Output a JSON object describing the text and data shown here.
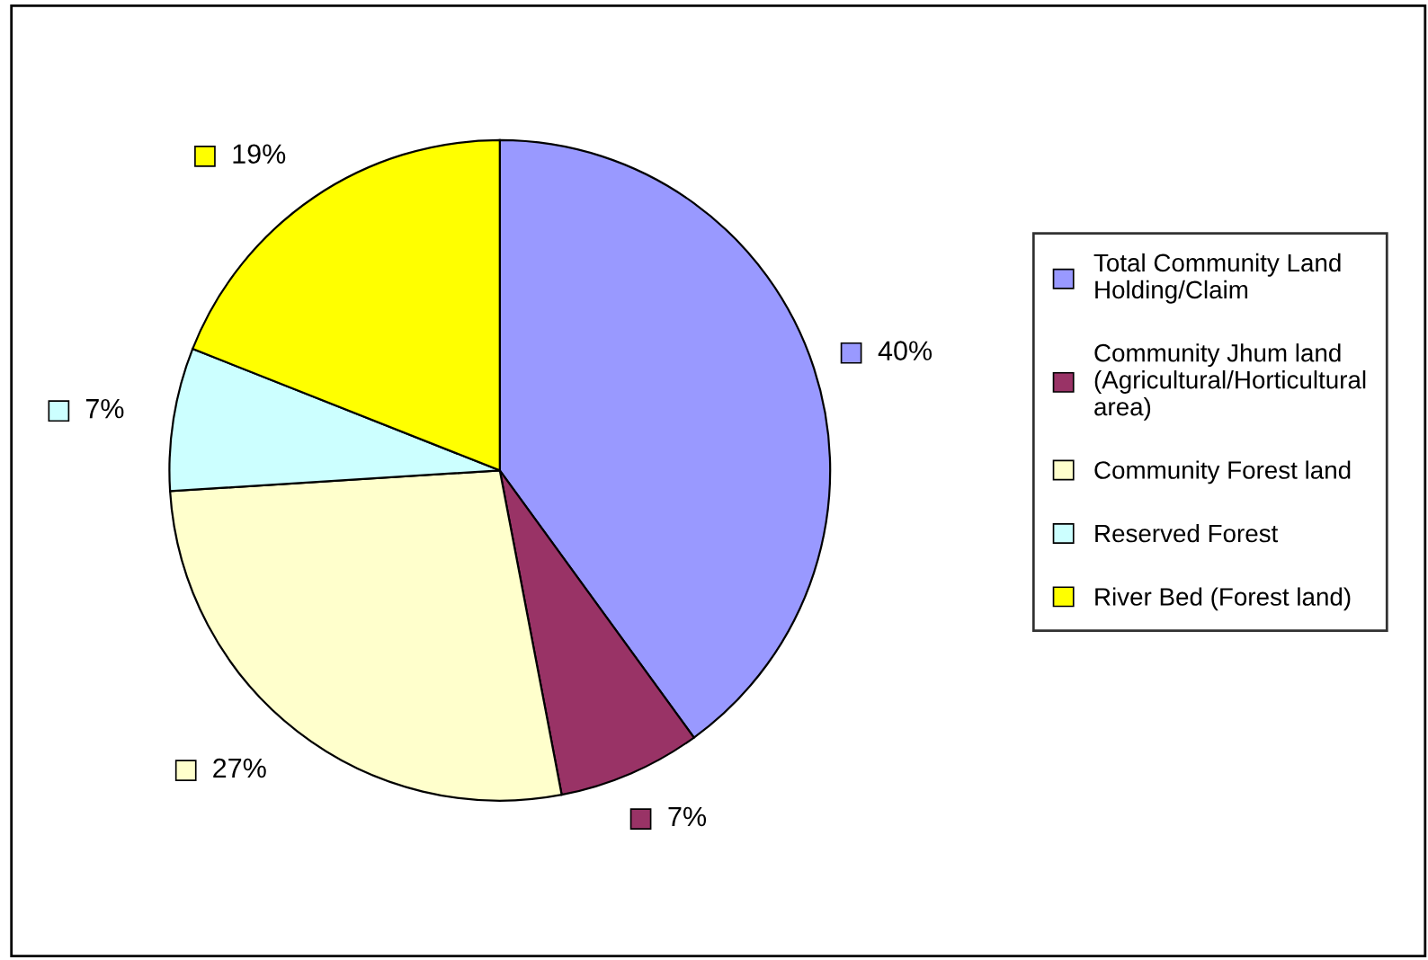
{
  "chart_data": {
    "type": "pie",
    "categories": [
      "Total Community Land Holding/Claim",
      "Community Jhum land (Agricultural/Horticultural area)",
      "Community Forest land",
      "Reserved Forest",
      "River Bed (Forest land)"
    ],
    "values": [
      40,
      7,
      27,
      7,
      19
    ],
    "colors": [
      "#9999ff",
      "#993366",
      "#ffffcc",
      "#ccffff",
      "#ffff00"
    ],
    "value_labels": [
      "40%",
      "7%",
      "27%",
      "7%",
      "19%"
    ],
    "legend": "right"
  }
}
